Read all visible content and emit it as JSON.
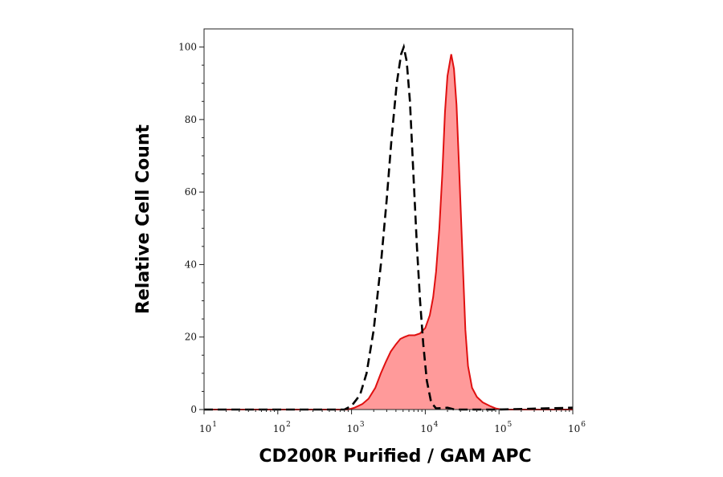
{
  "chart_data": {
    "type": "area",
    "title": "",
    "xlabel": "CD200R Purified / GAM APC",
    "ylabel": "Relative Cell Count",
    "x_scale": "log",
    "xlim": [
      10,
      1000000
    ],
    "ylim": [
      0,
      105
    ],
    "x_ticks": [
      10,
      100,
      1000,
      10000,
      100000,
      1000000
    ],
    "x_tick_labels": [
      [
        "10",
        "1"
      ],
      [
        "10",
        "2"
      ],
      [
        "10",
        "3"
      ],
      [
        "10",
        "4"
      ],
      [
        "10",
        "5"
      ],
      [
        "10",
        "6"
      ]
    ],
    "y_ticks": [
      0,
      20,
      40,
      60,
      80,
      100
    ],
    "y_tick_labels": [
      "0",
      "20",
      "40",
      "60",
      "80",
      "100"
    ],
    "grid": false,
    "legend": "none",
    "series": [
      {
        "style": "dashed-line",
        "color": "#000000",
        "points": [
          [
            10,
            0
          ],
          [
            100,
            0
          ],
          [
            500,
            0
          ],
          [
            800,
            0
          ],
          [
            1000,
            1
          ],
          [
            1300,
            4
          ],
          [
            1600,
            10
          ],
          [
            2000,
            22
          ],
          [
            2500,
            40
          ],
          [
            3000,
            58
          ],
          [
            3500,
            75
          ],
          [
            4100,
            90
          ],
          [
            4700,
            98
          ],
          [
            5100,
            100
          ],
          [
            5600,
            96
          ],
          [
            6200,
            85
          ],
          [
            6900,
            65
          ],
          [
            7700,
            45
          ],
          [
            8500,
            30
          ],
          [
            9400,
            18
          ],
          [
            10500,
            8
          ],
          [
            12000,
            2
          ],
          [
            14000,
            0.3
          ],
          [
            20000,
            0.5
          ],
          [
            25000,
            0
          ],
          [
            100000,
            0
          ],
          [
            1000000,
            0.5
          ]
        ]
      },
      {
        "style": "filled-area",
        "color": "#e01010",
        "fill": "#ff9a9a",
        "points": [
          [
            10,
            0
          ],
          [
            100,
            0
          ],
          [
            900,
            0
          ],
          [
            1100,
            0.5
          ],
          [
            1400,
            1.5
          ],
          [
            1700,
            3
          ],
          [
            2100,
            6
          ],
          [
            2500,
            10
          ],
          [
            2900,
            13
          ],
          [
            3400,
            16
          ],
          [
            4000,
            18
          ],
          [
            4600,
            19.5
          ],
          [
            5200,
            20
          ],
          [
            6000,
            20.5
          ],
          [
            7200,
            20.5
          ],
          [
            8500,
            21
          ],
          [
            10000,
            22.5
          ],
          [
            11500,
            26
          ],
          [
            12800,
            31
          ],
          [
            14000,
            38
          ],
          [
            15500,
            50
          ],
          [
            17000,
            65
          ],
          [
            18500,
            82
          ],
          [
            20000,
            92
          ],
          [
            22500,
            98
          ],
          [
            24500,
            94
          ],
          [
            26500,
            84
          ],
          [
            29000,
            65
          ],
          [
            32000,
            42
          ],
          [
            35000,
            22
          ],
          [
            38000,
            12
          ],
          [
            43000,
            6
          ],
          [
            50000,
            3.5
          ],
          [
            60000,
            2
          ],
          [
            75000,
            1
          ],
          [
            90000,
            0.3
          ],
          [
            110000,
            0
          ],
          [
            1000000,
            0
          ]
        ]
      }
    ]
  }
}
